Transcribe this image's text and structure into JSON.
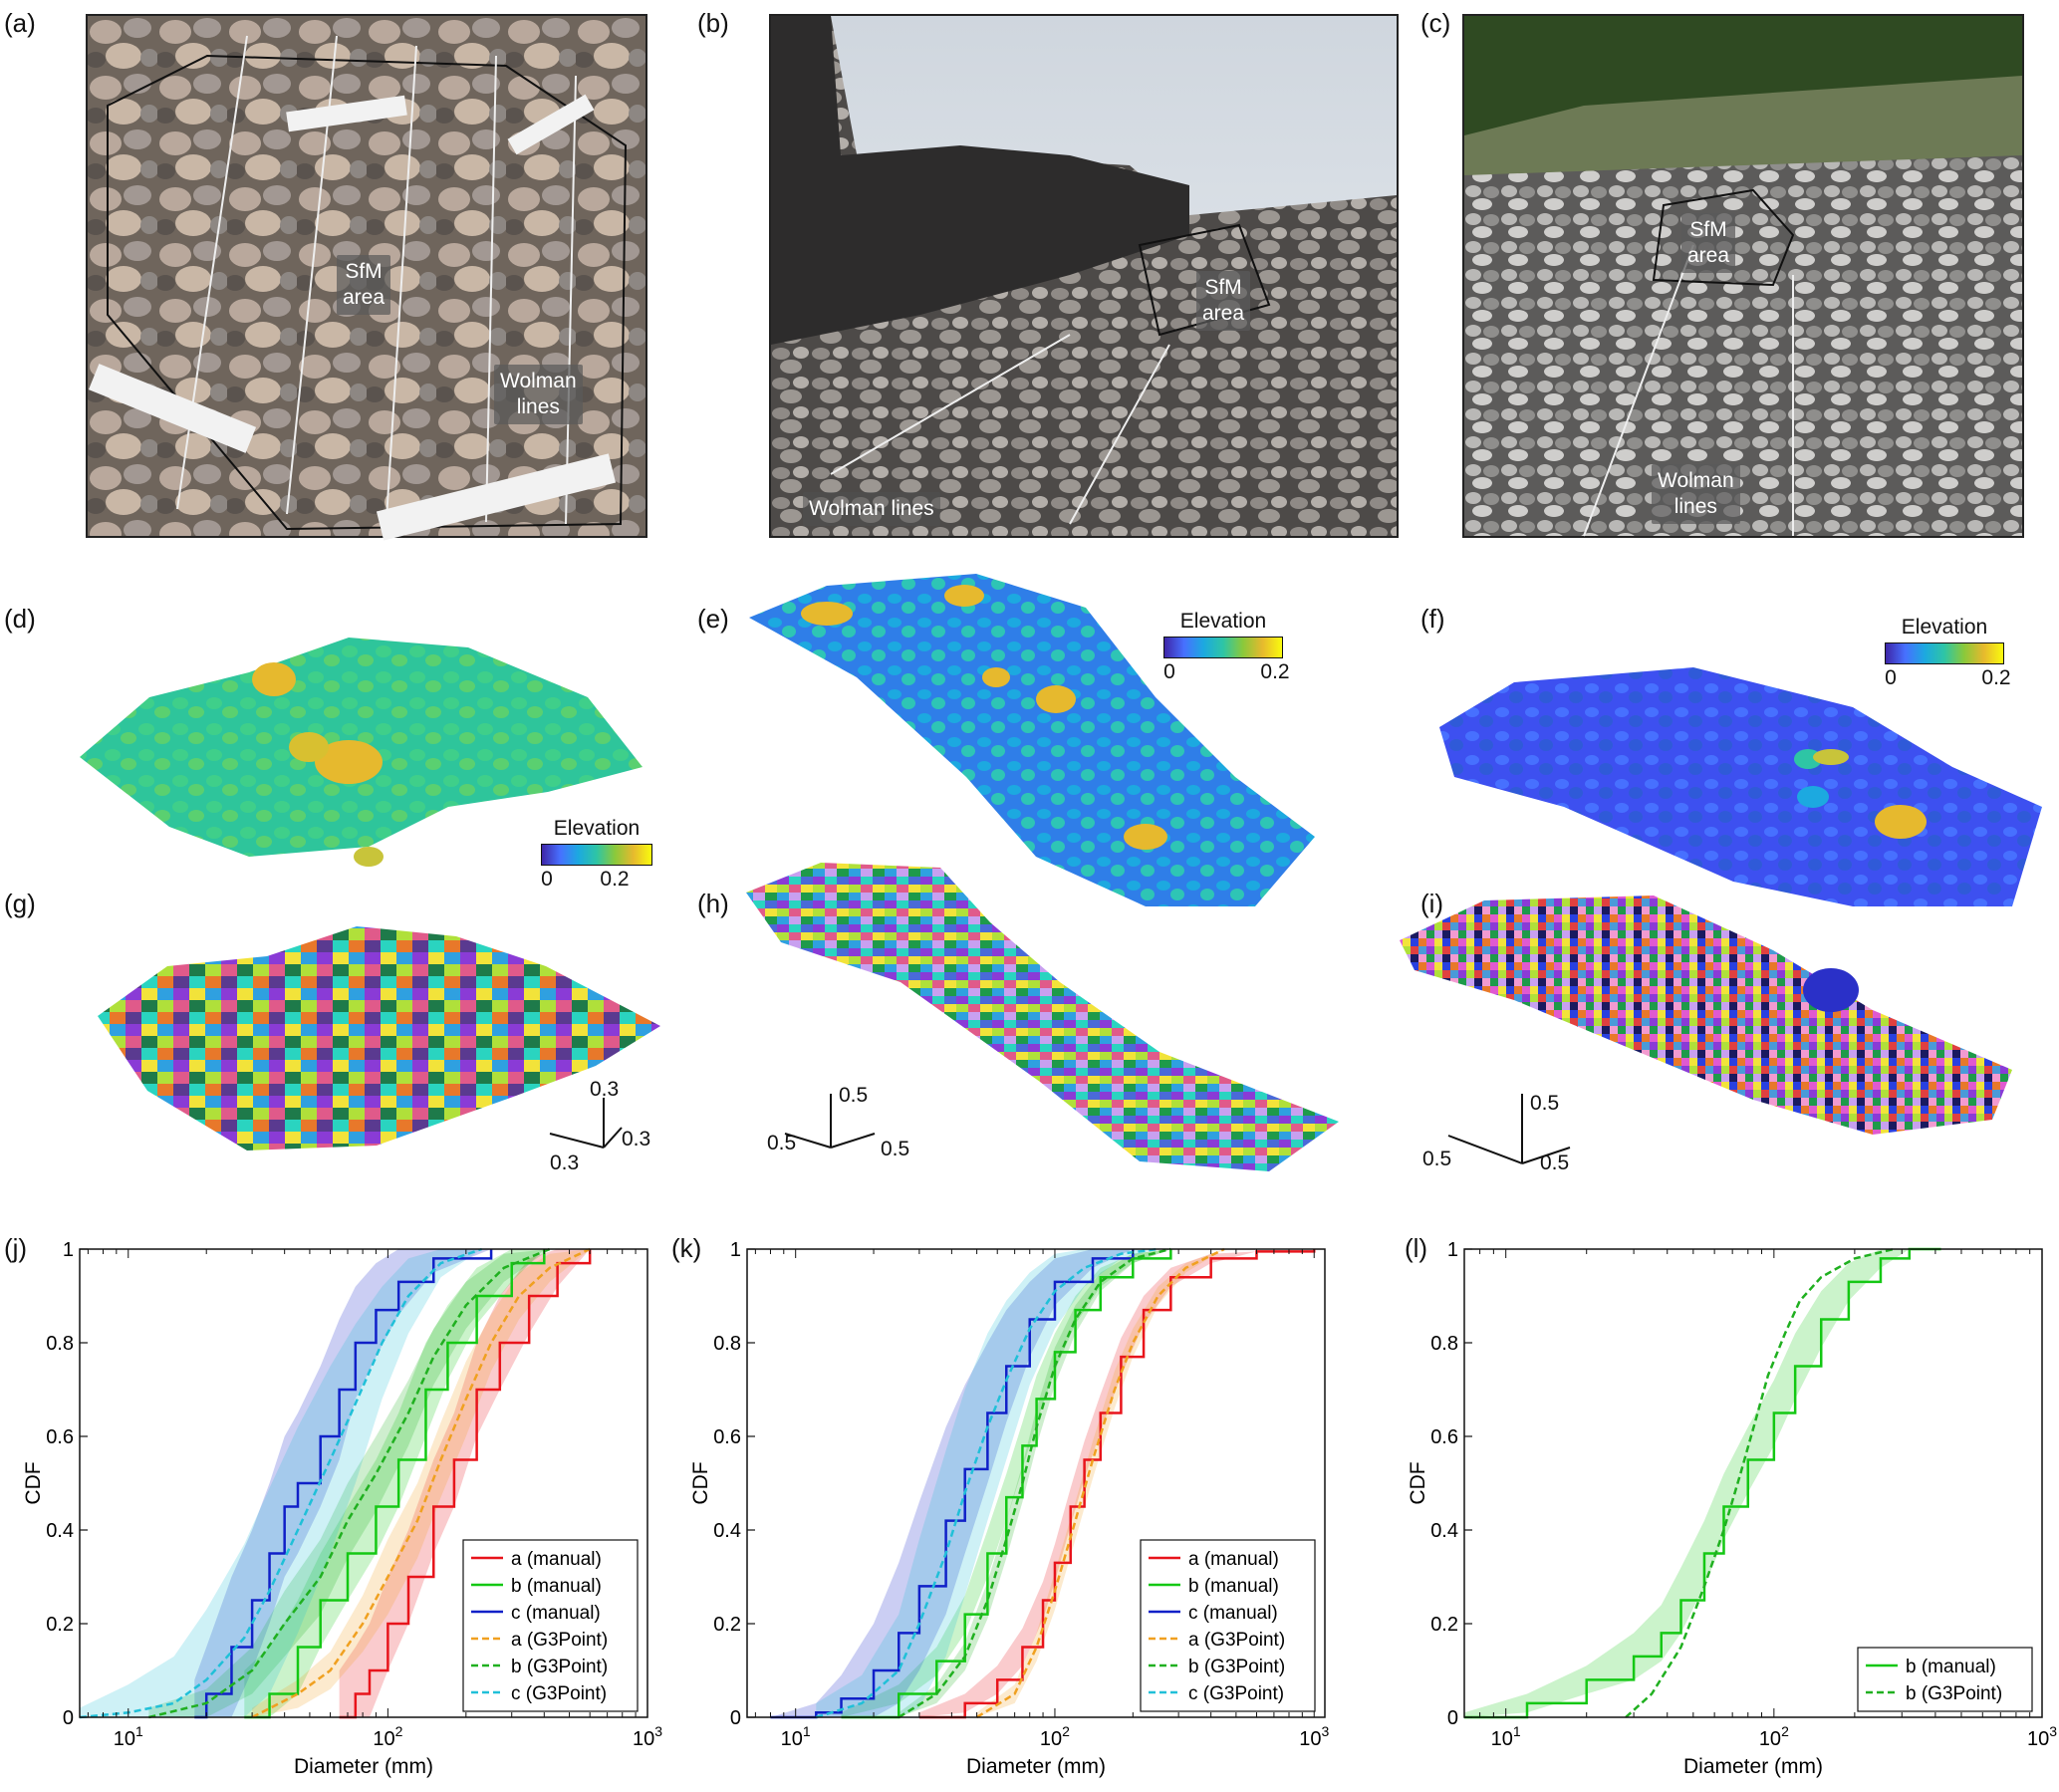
{
  "panels": {
    "a": {
      "label": "(a)",
      "tags": [
        "SfM\narea",
        "Wolman\nlines"
      ]
    },
    "b": {
      "label": "(b)",
      "tags": [
        "SfM\narea",
        "Wolman lines"
      ]
    },
    "c": {
      "label": "(c)",
      "tags": [
        "SfM\narea",
        "Wolman\nlines"
      ]
    },
    "d": {
      "label": "(d)",
      "colorbar": {
        "title": "Elevation",
        "ticks": [
          "0",
          "0.2"
        ]
      }
    },
    "e": {
      "label": "(e)",
      "colorbar": {
        "title": "Elevation",
        "ticks": [
          "0",
          "0.2"
        ]
      }
    },
    "f": {
      "label": "(f)",
      "colorbar": {
        "title": "Elevation",
        "ticks": [
          "0",
          "0.2"
        ]
      }
    },
    "g": {
      "label": "(g)",
      "axes": [
        "0.3",
        "0.3",
        "0.3"
      ]
    },
    "h": {
      "label": "(h)",
      "axes": [
        "0.5",
        "0.5",
        "0.5"
      ]
    },
    "i": {
      "label": "(i)",
      "axes": [
        "0.5",
        "0.5",
        "0.5"
      ]
    },
    "j": {
      "label": "(j)"
    },
    "k": {
      "label": "(k)"
    },
    "l": {
      "label": "(l)"
    }
  },
  "colors": {
    "a": "#e8141b",
    "b": "#14c814",
    "c": "#1020c8",
    "a_g3": "#f0a020",
    "b_g3": "#20b020",
    "c_g3": "#20c0d8"
  },
  "chart_data": [
    {
      "panel": "j",
      "type": "line",
      "xscale": "log",
      "xlim": [
        6.5,
        1000
      ],
      "ylim": [
        0,
        1
      ],
      "xlabel": "Diameter (mm)",
      "ylabel": "CDF",
      "xticks": [
        "10^1",
        "10^2",
        "10^3"
      ],
      "yticks": [
        "0",
        "0.2",
        "0.4",
        "0.6",
        "0.8",
        "1"
      ],
      "legend_position": "bottom-right",
      "series": [
        {
          "name": "a (manual)",
          "style": "solid",
          "color": "#e8141b",
          "x": [
            65,
            75,
            85,
            100,
            120,
            150,
            180,
            220,
            270,
            350,
            450,
            600
          ],
          "y": [
            0,
            0.05,
            0.1,
            0.2,
            0.3,
            0.45,
            0.55,
            0.7,
            0.8,
            0.9,
            0.97,
            1
          ],
          "band": [
            0.1,
            0.1,
            0.1,
            0.1,
            0.1,
            0.1,
            0.1,
            0.1,
            0.1,
            0.08,
            0.05,
            0
          ]
        },
        {
          "name": "b (manual)",
          "style": "solid",
          "color": "#14c814",
          "x": [
            28,
            35,
            45,
            55,
            70,
            90,
            110,
            140,
            170,
            220,
            300,
            400
          ],
          "y": [
            0,
            0.05,
            0.15,
            0.25,
            0.35,
            0.45,
            0.55,
            0.7,
            0.8,
            0.9,
            0.97,
            1
          ],
          "band": [
            0.1,
            0.1,
            0.1,
            0.1,
            0.1,
            0.1,
            0.1,
            0.1,
            0.08,
            0.06,
            0.04,
            0
          ]
        },
        {
          "name": "c (manual)",
          "style": "solid",
          "color": "#1020c8",
          "x": [
            18,
            20,
            25,
            30,
            35,
            40,
            45,
            55,
            65,
            75,
            90,
            110,
            150,
            250
          ],
          "y": [
            0,
            0.05,
            0.15,
            0.25,
            0.35,
            0.45,
            0.5,
            0.6,
            0.7,
            0.8,
            0.87,
            0.93,
            0.98,
            1
          ],
          "band": [
            0.08,
            0.1,
            0.15,
            0.15,
            0.15,
            0.15,
            0.15,
            0.15,
            0.15,
            0.12,
            0.1,
            0.07,
            0.03,
            0
          ]
        },
        {
          "name": "a (G3Point)",
          "style": "dashed",
          "color": "#f0a020",
          "x": [
            30,
            45,
            60,
            80,
            100,
            130,
            160,
            200,
            250,
            320,
            420,
            600
          ],
          "y": [
            0,
            0.05,
            0.1,
            0.2,
            0.3,
            0.42,
            0.55,
            0.68,
            0.8,
            0.9,
            0.96,
            1
          ],
          "band": [
            0.02,
            0.03,
            0.04,
            0.06,
            0.08,
            0.08,
            0.08,
            0.08,
            0.06,
            0.05,
            0.03,
            0
          ]
        },
        {
          "name": "b (G3Point)",
          "style": "dashed",
          "color": "#20b020",
          "x": [
            12,
            20,
            30,
            40,
            55,
            70,
            90,
            120,
            150,
            200,
            280,
            420
          ],
          "y": [
            0,
            0.03,
            0.1,
            0.2,
            0.3,
            0.42,
            0.52,
            0.65,
            0.77,
            0.88,
            0.96,
            1
          ],
          "band": [
            0.02,
            0.03,
            0.05,
            0.07,
            0.08,
            0.08,
            0.08,
            0.07,
            0.06,
            0.05,
            0.03,
            0
          ]
        },
        {
          "name": "c (G3Point)",
          "style": "dashed",
          "color": "#20c0d8",
          "x": [
            6.5,
            10,
            15,
            20,
            28,
            35,
            45,
            60,
            75,
            95,
            120,
            160,
            230
          ],
          "y": [
            0,
            0.01,
            0.03,
            0.08,
            0.17,
            0.27,
            0.4,
            0.55,
            0.67,
            0.8,
            0.9,
            0.97,
            1
          ],
          "band": [
            0.02,
            0.06,
            0.1,
            0.15,
            0.2,
            0.22,
            0.22,
            0.2,
            0.17,
            0.12,
            0.08,
            0.03,
            0
          ]
        }
      ]
    },
    {
      "panel": "k",
      "type": "line",
      "xscale": "log",
      "xlim": [
        6.5,
        1100
      ],
      "ylim": [
        0,
        1
      ],
      "xlabel": "Diameter (mm)",
      "ylabel": "CDF",
      "xticks": [
        "10^1",
        "10^2",
        "10^3"
      ],
      "yticks": [
        "0",
        "0.2",
        "0.4",
        "0.6",
        "0.8",
        "1"
      ],
      "legend_position": "bottom-right",
      "series": [
        {
          "name": "a (manual)",
          "style": "solid",
          "color": "#e8141b",
          "x": [
            30,
            45,
            60,
            75,
            90,
            100,
            115,
            130,
            150,
            180,
            220,
            280,
            400,
            600,
            1000
          ],
          "y": [
            0,
            0.03,
            0.08,
            0.15,
            0.25,
            0.33,
            0.45,
            0.55,
            0.65,
            0.77,
            0.87,
            0.94,
            0.98,
            0.995,
            1
          ],
          "band": [
            0.01,
            0.02,
            0.03,
            0.04,
            0.04,
            0.04,
            0.04,
            0.04,
            0.04,
            0.04,
            0.03,
            0.02,
            0.01,
            0,
            0
          ]
        },
        {
          "name": "b (manual)",
          "style": "solid",
          "color": "#14c814",
          "x": [
            15,
            25,
            35,
            45,
            55,
            65,
            75,
            85,
            100,
            120,
            150,
            200,
            280
          ],
          "y": [
            0,
            0.05,
            0.12,
            0.22,
            0.35,
            0.47,
            0.58,
            0.68,
            0.78,
            0.87,
            0.94,
            0.98,
            1
          ],
          "band": [
            0.01,
            0.02,
            0.03,
            0.04,
            0.05,
            0.05,
            0.05,
            0.05,
            0.04,
            0.03,
            0.02,
            0.01,
            0
          ]
        },
        {
          "name": "c (manual)",
          "style": "solid",
          "color": "#1020c8",
          "x": [
            8,
            12,
            15,
            20,
            25,
            30,
            38,
            45,
            55,
            65,
            80,
            100,
            140,
            200
          ],
          "y": [
            0,
            0.01,
            0.04,
            0.1,
            0.18,
            0.28,
            0.42,
            0.53,
            0.65,
            0.75,
            0.85,
            0.93,
            0.98,
            1
          ],
          "band": [
            0,
            0.02,
            0.05,
            0.1,
            0.15,
            0.18,
            0.2,
            0.18,
            0.15,
            0.12,
            0.08,
            0.05,
            0.02,
            0
          ]
        },
        {
          "name": "a (G3Point)",
          "style": "dashed",
          "color": "#f0a020",
          "x": [
            50,
            70,
            85,
            100,
            120,
            140,
            170,
            200,
            250,
            320,
            450
          ],
          "y": [
            0,
            0.05,
            0.15,
            0.27,
            0.42,
            0.55,
            0.7,
            0.8,
            0.9,
            0.96,
            1
          ],
          "band": [
            0.01,
            0.02,
            0.03,
            0.04,
            0.04,
            0.04,
            0.04,
            0.03,
            0.02,
            0.01,
            0
          ]
        },
        {
          "name": "b (G3Point)",
          "style": "dashed",
          "color": "#20b020",
          "x": [
            25,
            35,
            45,
            55,
            65,
            75,
            85,
            100,
            120,
            150,
            200,
            280
          ],
          "y": [
            0,
            0.05,
            0.13,
            0.25,
            0.38,
            0.5,
            0.62,
            0.75,
            0.85,
            0.93,
            0.98,
            1
          ],
          "band": [
            0.01,
            0.02,
            0.03,
            0.04,
            0.04,
            0.04,
            0.04,
            0.04,
            0.03,
            0.02,
            0.01,
            0
          ]
        },
        {
          "name": "c (G3Point)",
          "style": "dashed",
          "color": "#20c0d8",
          "x": [
            12,
            18,
            25,
            30,
            38,
            45,
            55,
            65,
            80,
            100,
            130,
            180,
            250
          ],
          "y": [
            0,
            0.03,
            0.1,
            0.2,
            0.35,
            0.48,
            0.62,
            0.72,
            0.83,
            0.91,
            0.96,
            0.99,
            1
          ],
          "band": [
            0.03,
            0.06,
            0.12,
            0.18,
            0.22,
            0.22,
            0.2,
            0.17,
            0.12,
            0.08,
            0.04,
            0.01,
            0
          ]
        }
      ]
    },
    {
      "panel": "l",
      "type": "line",
      "xscale": "log",
      "xlim": [
        7,
        1000
      ],
      "ylim": [
        0,
        1
      ],
      "xlabel": "Diameter (mm)",
      "ylabel": "CDF",
      "xticks": [
        "10^1",
        "10^2",
        "10^3"
      ],
      "yticks": [
        "0",
        "0.2",
        "0.4",
        "0.6",
        "0.8",
        "1"
      ],
      "legend_position": "bottom-right",
      "series": [
        {
          "name": "b (manual)",
          "style": "solid",
          "color": "#14c814",
          "x": [
            7,
            12,
            20,
            30,
            38,
            45,
            55,
            65,
            80,
            100,
            120,
            150,
            190,
            250,
            320,
            420
          ],
          "y": [
            0,
            0.03,
            0.08,
            0.13,
            0.18,
            0.25,
            0.35,
            0.45,
            0.55,
            0.65,
            0.75,
            0.85,
            0.93,
            0.98,
            1,
            1
          ],
          "band": [
            0.01,
            0.02,
            0.03,
            0.05,
            0.06,
            0.07,
            0.07,
            0.07,
            0.07,
            0.07,
            0.07,
            0.06,
            0.04,
            0.02,
            0,
            0
          ]
        },
        {
          "name": "b (G3Point)",
          "style": "dashed",
          "color": "#20b020",
          "x": [
            28,
            35,
            45,
            55,
            65,
            75,
            85,
            95,
            110,
            125,
            150,
            200,
            280
          ],
          "y": [
            0,
            0.05,
            0.15,
            0.28,
            0.4,
            0.52,
            0.63,
            0.73,
            0.82,
            0.89,
            0.94,
            0.98,
            1
          ],
          "band": [
            0,
            0,
            0,
            0,
            0,
            0,
            0,
            0,
            0,
            0,
            0,
            0,
            0
          ]
        }
      ]
    }
  ]
}
